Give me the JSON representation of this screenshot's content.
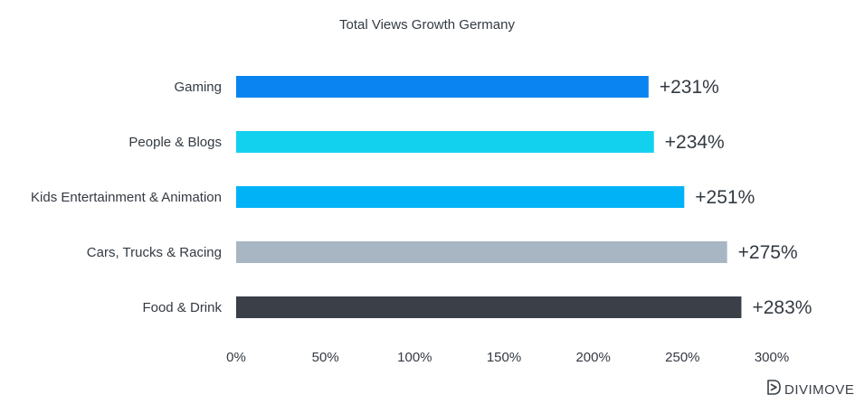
{
  "chart_data": {
    "type": "bar",
    "orientation": "horizontal",
    "title": "Total Views Growth Germany",
    "xlabel": "",
    "ylabel": "",
    "categories": [
      "Gaming",
      "People & Blogs",
      "Kids Entertainment & Animation",
      "Cars, Trucks & Racing",
      "Food & Drink"
    ],
    "values": [
      231,
      234,
      251,
      275,
      283
    ],
    "value_labels": [
      "+231%",
      "+234%",
      "+251%",
      "+275%",
      "+283%"
    ],
    "colors": [
      "#0a84f0",
      "#12d1ef",
      "#02b2f7",
      "#a8b5c3",
      "#3a3f48"
    ],
    "xlim": [
      0,
      300
    ],
    "xticks": [
      0,
      50,
      100,
      150,
      200,
      250,
      300
    ],
    "xtick_labels": [
      "0%",
      "50%",
      "100%",
      "150%",
      "200%",
      "250%",
      "300%"
    ],
    "grid": false,
    "legend": "none"
  },
  "branding": {
    "logo_icon": "divimove-logo-icon",
    "name": "DIVIMOVE"
  }
}
